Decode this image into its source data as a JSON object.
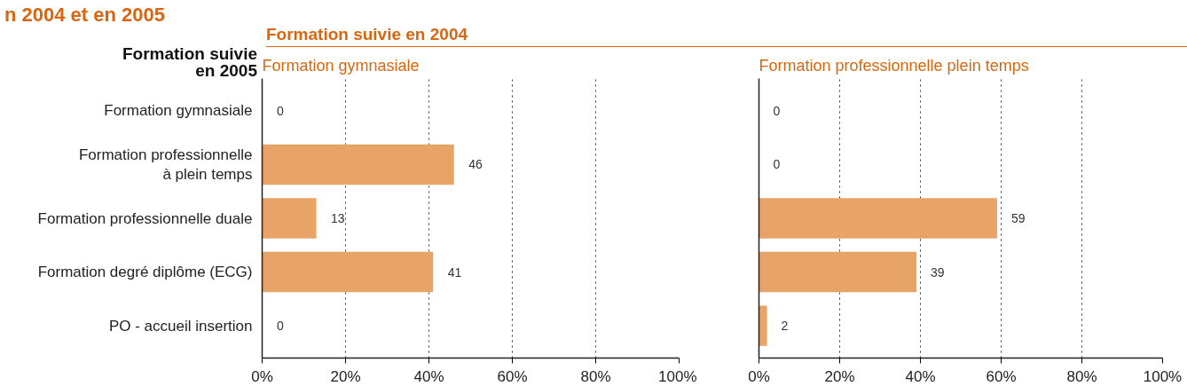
{
  "chart_data": [
    {
      "type": "bar",
      "orientation": "horizontal",
      "title": "Formation gymnasiale",
      "ylabel": "Formation suivie\nen 2005",
      "annotations": [
        "n 2004 et en 2005",
        "Formation suivie en 2004"
      ],
      "categories": [
        "Formation gymnasiale",
        "Formation professionnelle\nà plein temps",
        "Formation professionnelle duale",
        "Formation degré diplôme (ECG)",
        "PO - accueil insertion"
      ],
      "values": [
        0,
        46,
        13,
        41,
        0
      ],
      "color": "#e8a366",
      "data_labels": true,
      "grid": "x",
      "xlim": [
        0,
        100
      ],
      "xticks": [
        {
          "value": 0,
          "label": "0%"
        },
        {
          "value": 20,
          "label": "20%"
        },
        {
          "value": 40,
          "label": "40%"
        },
        {
          "value": 60,
          "label": "60%"
        },
        {
          "value": 80,
          "label": "80%"
        },
        {
          "value": 100,
          "label": "100%"
        }
      ]
    },
    {
      "type": "bar",
      "orientation": "horizontal",
      "title": "Formation professionnelle plein temps",
      "categories": [
        null,
        null,
        null,
        null,
        null
      ],
      "values": [
        0,
        0,
        59,
        39,
        2
      ],
      "color": "#e8a366",
      "data_labels": true,
      "grid": "x",
      "tick_labels": "x",
      "xlim": [
        0,
        100
      ],
      "xticks": [
        {
          "value": 0,
          "label": "0%"
        },
        {
          "value": 20,
          "label": "20%"
        },
        {
          "value": 40,
          "label": "40%"
        },
        {
          "value": 60,
          "label": "60%"
        },
        {
          "value": 80,
          "label": "80%"
        },
        {
          "value": 100,
          "label": "100%"
        }
      ]
    }
  ]
}
